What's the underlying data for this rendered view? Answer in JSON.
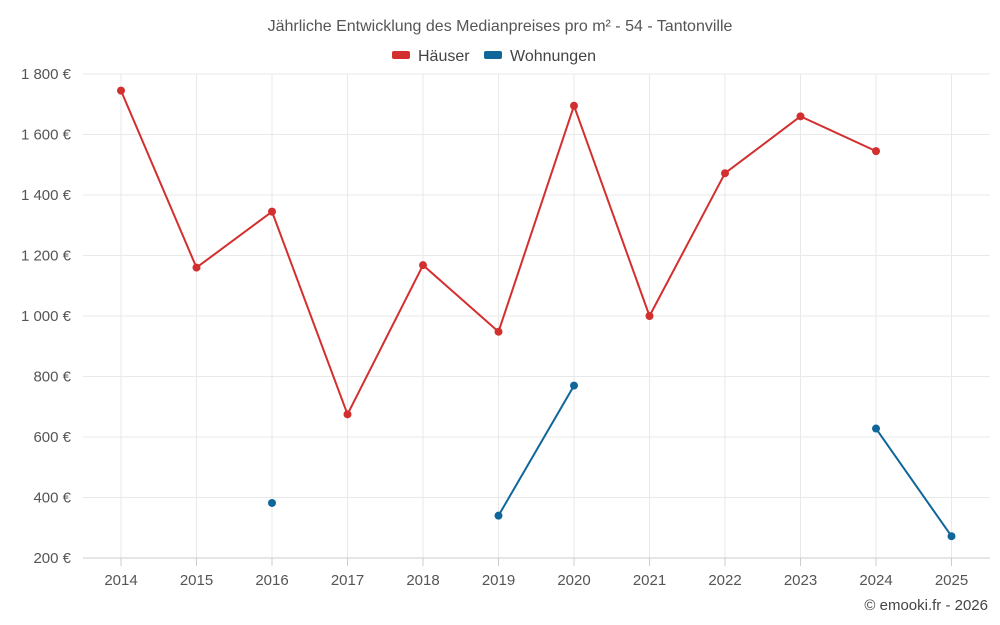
{
  "chart_data": {
    "type": "line",
    "title": "Jährliche Entwicklung des Medianpreises pro m² - 54 - Tantonville",
    "categories": [
      "2014",
      "2015",
      "2016",
      "2017",
      "2018",
      "2019",
      "2020",
      "2021",
      "2022",
      "2023",
      "2024",
      "2025"
    ],
    "y_ticks": [
      "200 €",
      "400 €",
      "600 €",
      "800 €",
      "1 000 €",
      "1 200 €",
      "1 400 €",
      "1 600 €",
      "1 800 €"
    ],
    "ylim": [
      200,
      1800
    ],
    "xlabel": "",
    "ylabel": "",
    "grid": true,
    "legend_position": "top-center",
    "series": [
      {
        "name": "Häuser",
        "color": "#d32f2f",
        "values": [
          1745,
          1160,
          1345,
          675,
          1168,
          948,
          1695,
          1000,
          1472,
          1660,
          1545,
          null
        ]
      },
      {
        "name": "Wohnungen",
        "color": "#0f6699",
        "values": [
          null,
          null,
          382,
          null,
          null,
          340,
          770,
          null,
          null,
          null,
          628,
          272
        ]
      }
    ]
  },
  "credit": "© emooki.fr - 2026"
}
